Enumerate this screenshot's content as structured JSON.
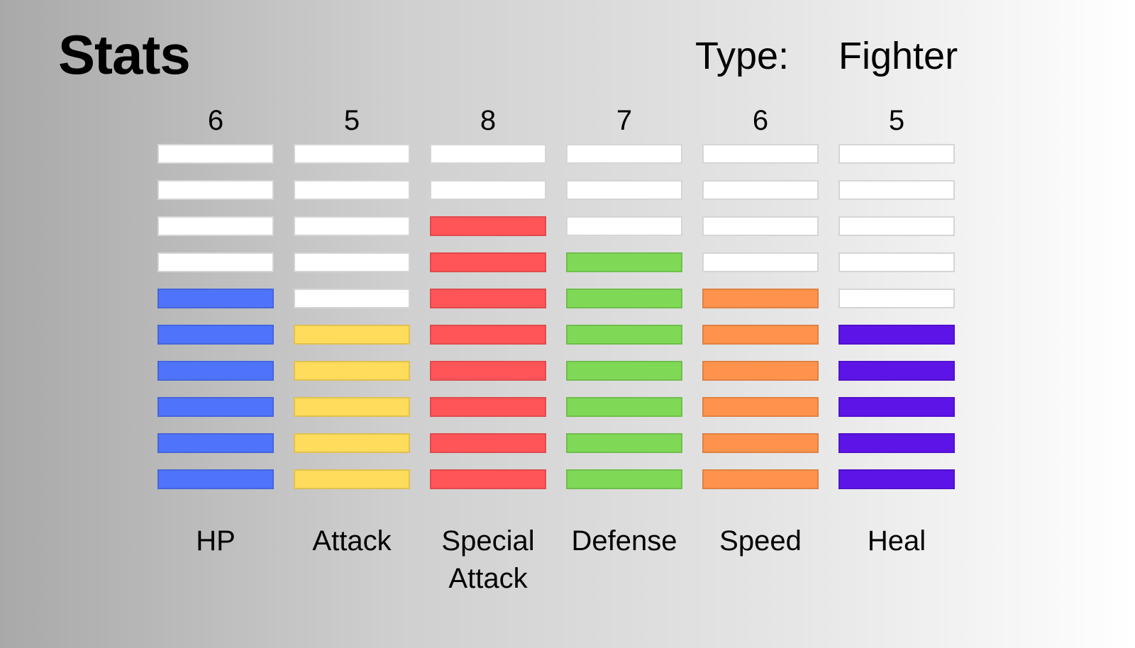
{
  "page": {
    "title": "Stats",
    "type_label": "Type:",
    "type_value": "Fighter"
  },
  "stats": [
    {
      "label": "HP",
      "value": "6",
      "level": 6,
      "color": "#4f74fb"
    },
    {
      "label": "Attack",
      "value": "5",
      "level": 5,
      "color": "#ffdc5c"
    },
    {
      "label": "Special\nAttack",
      "value": "8",
      "level": 8,
      "color": "#ff5558"
    },
    {
      "label": "Defense",
      "value": "7",
      "level": 7,
      "color": "#7fd957"
    },
    {
      "label": "Speed",
      "value": "6",
      "level": 6,
      "color": "#ff934d"
    },
    {
      "label": "Heal",
      "value": "5",
      "level": 5,
      "color": "#5d14e7"
    }
  ],
  "scale_max": 10
}
